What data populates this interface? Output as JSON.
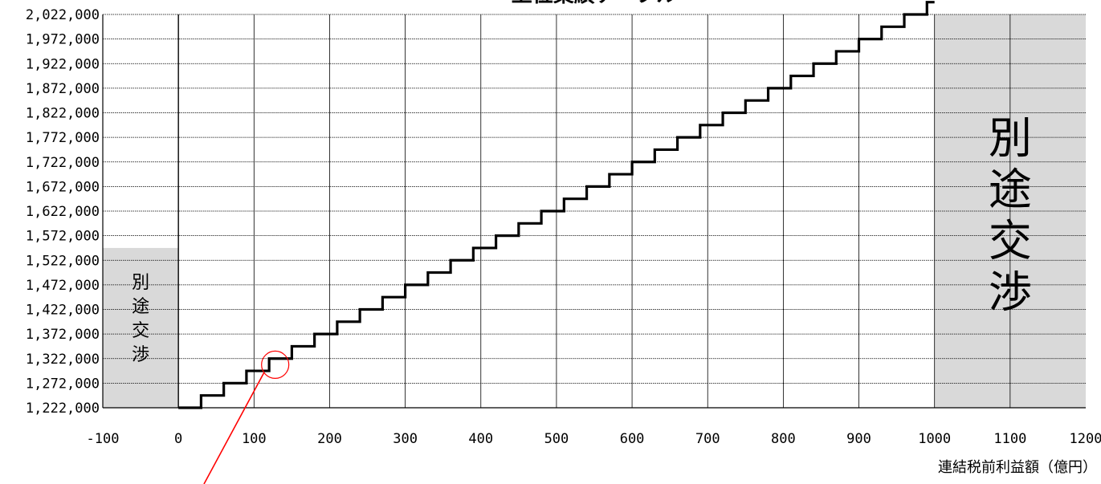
{
  "chart_data": {
    "type": "line",
    "title": "上位業績テーブル",
    "xlabel": "連結税前利益額（億円）",
    "ylabel": "",
    "xlim": [
      -100,
      1200
    ],
    "ylim": [
      1222000,
      2022000
    ],
    "x_ticks": [
      "-100",
      "0",
      "100",
      "200",
      "300",
      "400",
      "500",
      "600",
      "700",
      "800",
      "900",
      "1000",
      "1100",
      "1200"
    ],
    "y_ticks": [
      "1,222,000",
      "1,272,000",
      "1,322,000",
      "1,372,000",
      "1,422,000",
      "1,472,000",
      "1,522,000",
      "1,572,000",
      "1,622,000",
      "1,672,000",
      "1,722,000",
      "1,772,000",
      "1,822,000",
      "1,872,000",
      "1,922,000",
      "1,972,000",
      "2,022,000"
    ],
    "grid": true,
    "step_start_x": 0,
    "step_width_x": 30,
    "step_start_y": 1222000,
    "step_height_y": 25000,
    "step_end_x": 1000,
    "regions": [
      {
        "label": "別途交渉",
        "x_from": -100,
        "x_to": 0,
        "y_from": 1222000,
        "y_to": 1547000
      },
      {
        "label": "別途交渉",
        "x_from": 1000,
        "x_to": 1200,
        "y_from": 1222000,
        "y_to": 2022000
      }
    ],
    "annotation": {
      "x": 128,
      "y": 1309500
    }
  }
}
